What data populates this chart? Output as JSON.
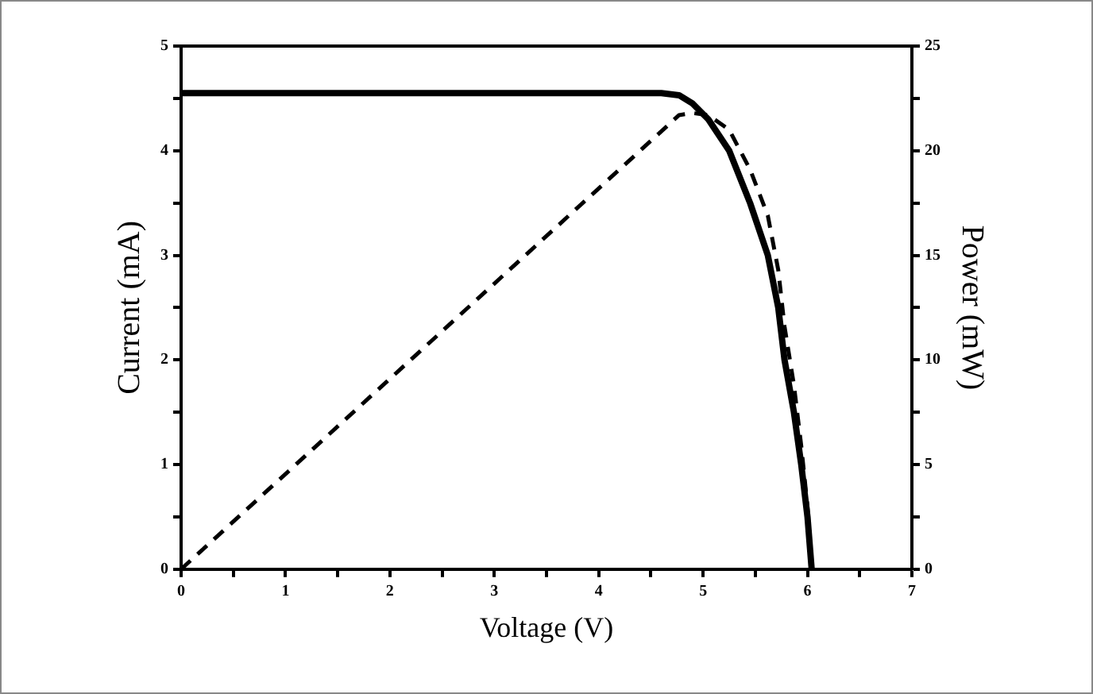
{
  "chart_data": {
    "type": "line",
    "xlabel": "Voltage (V)",
    "ylabel": "Current (mA)",
    "y2label": "Power (mW)",
    "xlim": [
      0,
      7
    ],
    "xticks": [
      0,
      {
        "value": 0.5,
        "label": null
      },
      1,
      {
        "value": 1.5,
        "label": null
      },
      2,
      {
        "value": 2.5,
        "label": null
      },
      3,
      {
        "value": 3.5,
        "label": null
      },
      4,
      {
        "value": 4.5,
        "label": null
      },
      5,
      {
        "value": 5.5,
        "label": null
      },
      6,
      {
        "value": 6.5,
        "label": null
      },
      7
    ],
    "ylim": [
      0,
      5
    ],
    "yticks": [
      0,
      {
        "value": 0.5,
        "label": null
      },
      1,
      {
        "value": 1.5,
        "label": null
      },
      2,
      {
        "value": 2.5,
        "label": null
      },
      3,
      {
        "value": 3.5,
        "label": null
      },
      4,
      {
        "value": 4.5,
        "label": null
      },
      5
    ],
    "y2lim": [
      0,
      25
    ],
    "y2ticks": [
      0,
      {
        "value": 2.5,
        "label": null
      },
      5,
      {
        "value": 7.5,
        "label": null
      },
      10,
      {
        "value": 12.5,
        "label": null
      },
      15,
      {
        "value": 17.5,
        "label": null
      },
      20,
      {
        "value": 22.5,
        "label": null
      },
      25
    ],
    "grid": false,
    "legend": false,
    "marker": "none",
    "series": [
      {
        "color": "#000000",
        "line_style": "solid",
        "x": [
          0,
          1,
          2,
          3,
          4,
          4.6,
          4.77,
          4.9,
          5.05,
          5.25,
          5.45,
          5.62,
          5.72,
          5.78,
          5.87,
          5.94,
          6.0,
          6.04
        ],
        "values": [
          4.55,
          4.55,
          4.55,
          4.55,
          4.55,
          4.55,
          4.53,
          4.45,
          4.3,
          4.0,
          3.5,
          3.0,
          2.5,
          2.0,
          1.5,
          1.0,
          0.5,
          0
        ]
      },
      {
        "color": "#000000",
        "line_style": "dashed",
        "axis": "y2",
        "x": [
          0,
          4.77,
          4.9,
          5.05,
          5.25,
          5.45,
          5.62,
          5.72,
          5.78,
          5.87,
          5.94,
          6.0,
          6.04
        ],
        "values": [
          0,
          21.7,
          21.8,
          21.7,
          21.0,
          19.1,
          16.9,
          14.3,
          11.6,
          8.8,
          5.9,
          3.0,
          0
        ]
      }
    ]
  }
}
